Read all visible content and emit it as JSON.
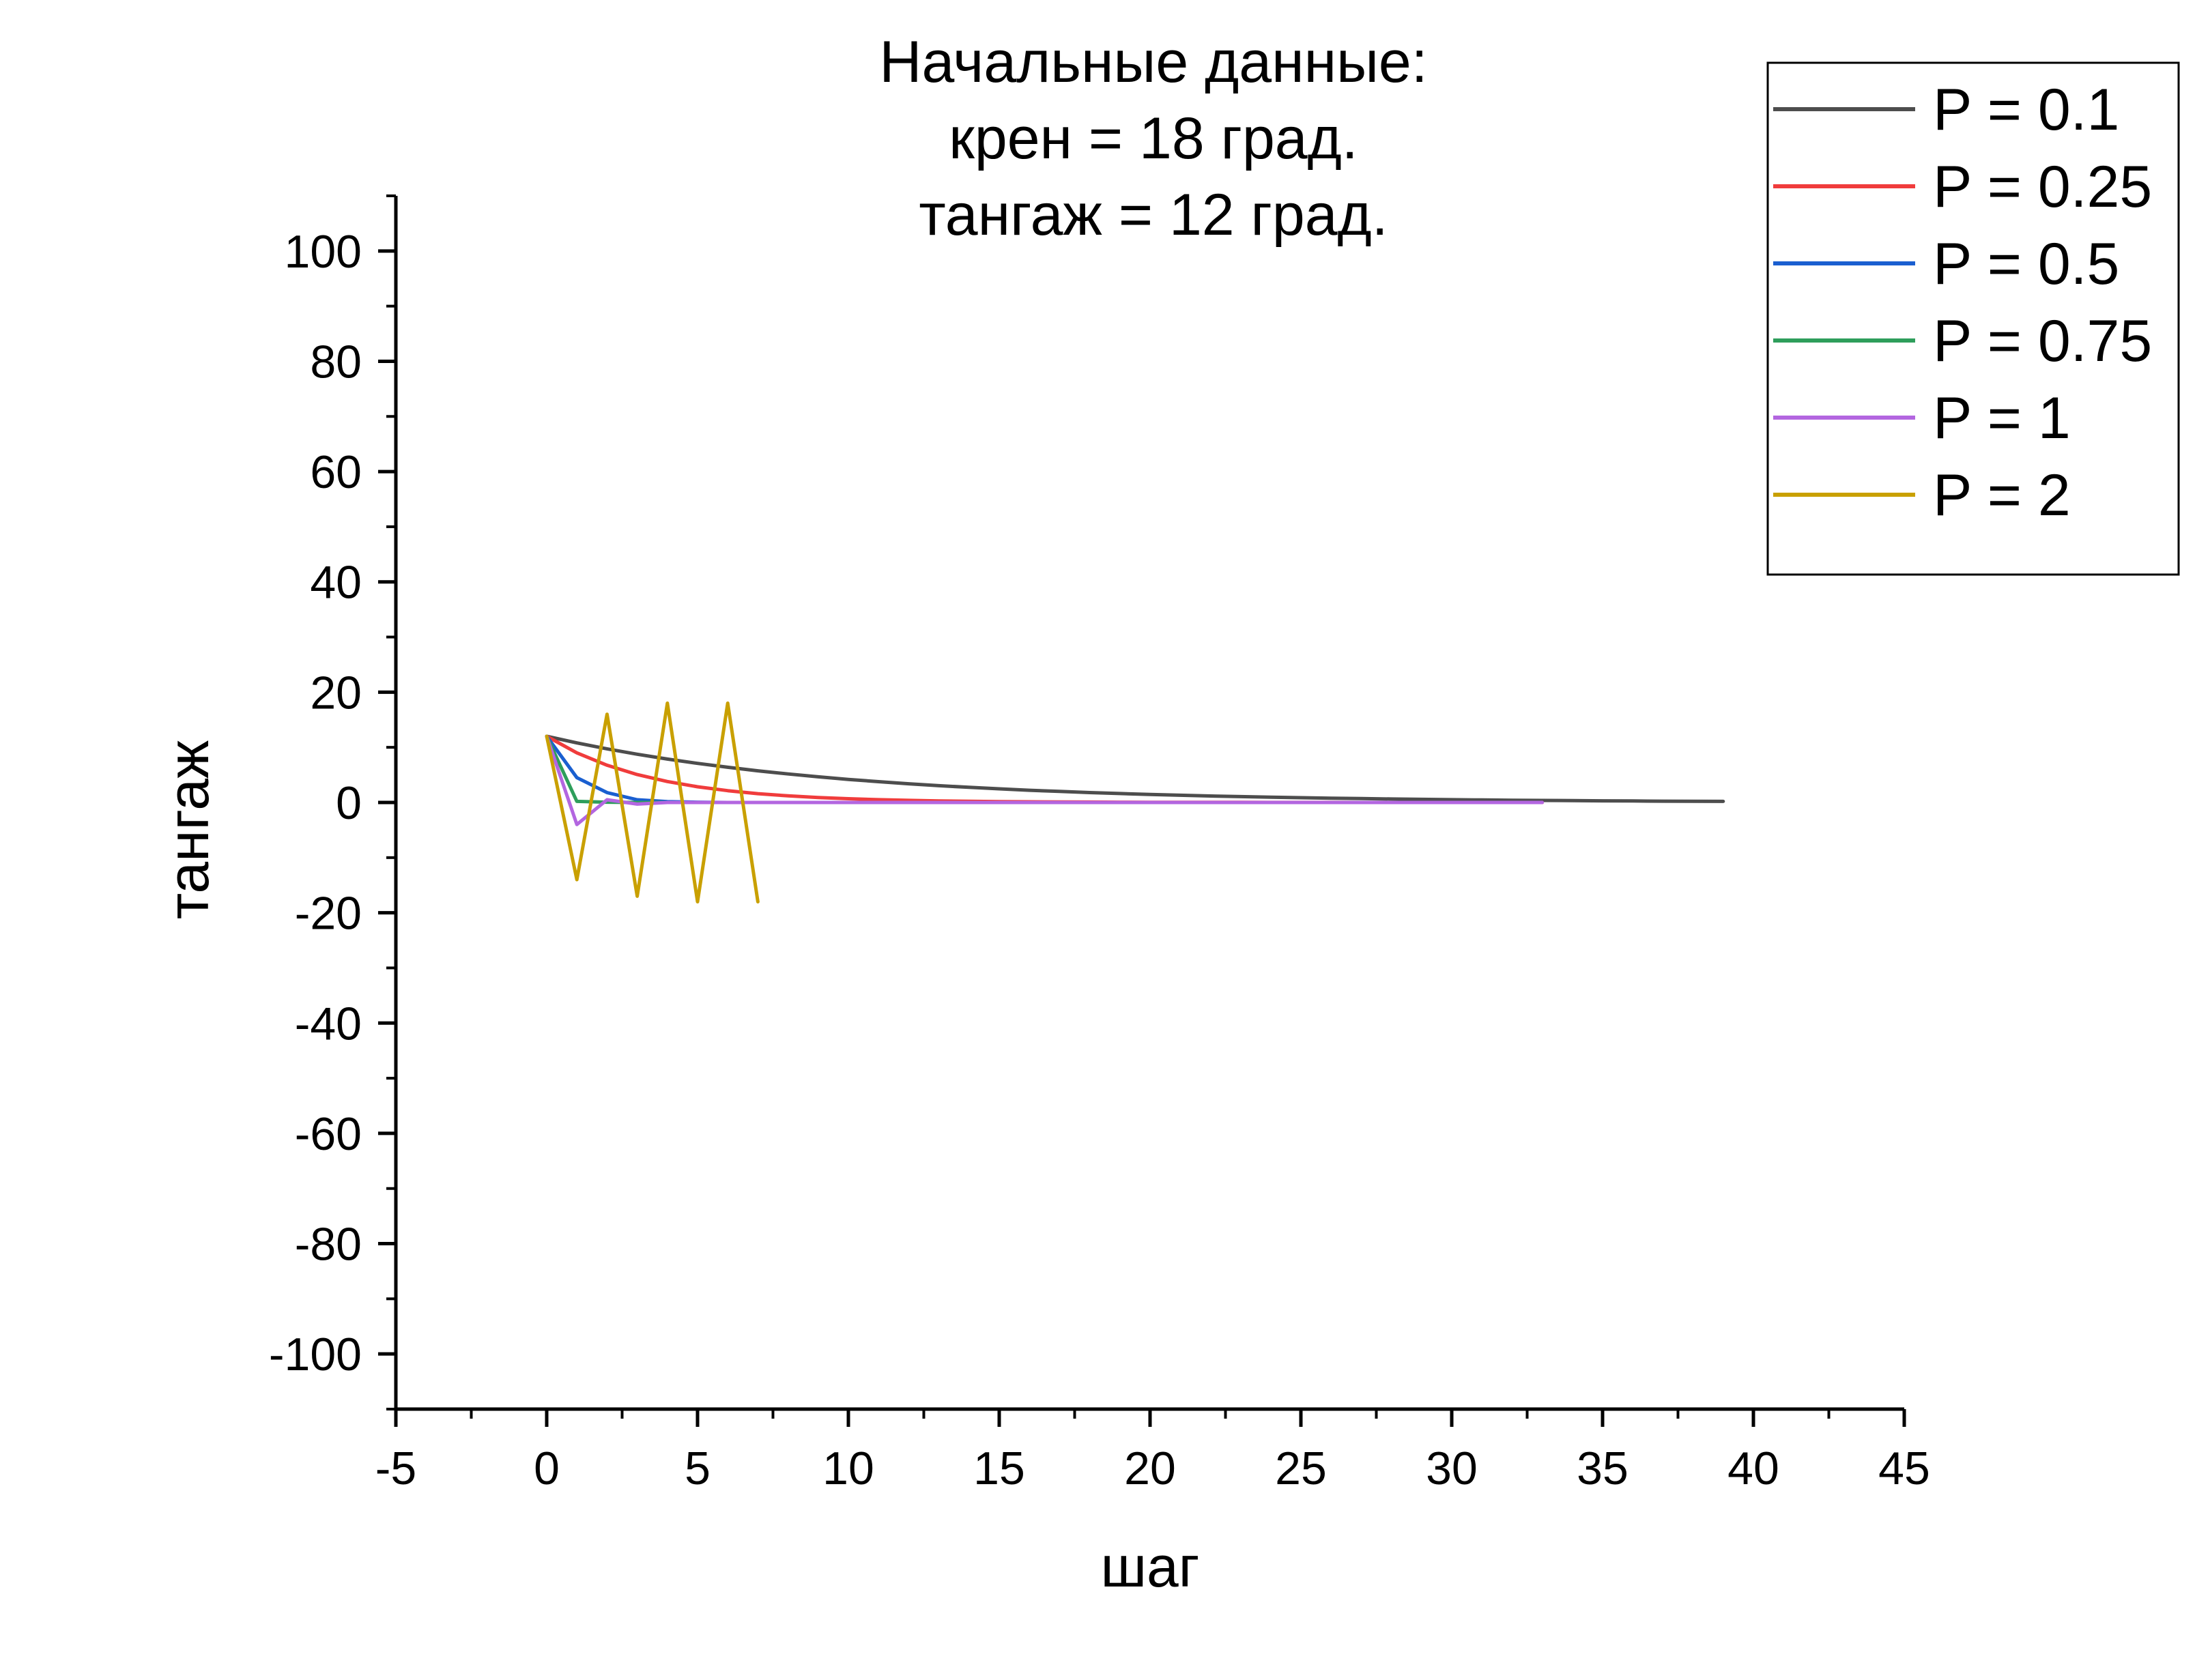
{
  "chart_data": {
    "type": "line",
    "title_lines": [
      "Начальные данные:",
      "крен = 18 град.",
      "тангаж = 12 град."
    ],
    "xlabel": "шаг",
    "ylabel": "тангаж",
    "xlim": [
      -5,
      45
    ],
    "ylim": [
      -110,
      110
    ],
    "x_ticks": [
      "-5",
      "0",
      "5",
      "10",
      "15",
      "20",
      "25",
      "30",
      "35",
      "40",
      "45"
    ],
    "y_ticks": [
      "100",
      "80",
      "60",
      "40",
      "20",
      "0",
      "-20",
      "-40",
      "-60",
      "-80",
      "-100"
    ],
    "grid": false,
    "legend_position": "top-right",
    "series": [
      {
        "name": "P = 0.1",
        "color": "#4d4d4d",
        "x": [
          0,
          1,
          2,
          3,
          4,
          5,
          6,
          7,
          8,
          9,
          10,
          11,
          12,
          13,
          14,
          15,
          16,
          17,
          18,
          19,
          20,
          21,
          22,
          23,
          24,
          25,
          26,
          27,
          28,
          29,
          30,
          31,
          32,
          33,
          34,
          35,
          36,
          37,
          38,
          39
        ],
        "y": [
          12,
          10.8,
          9.72,
          8.75,
          7.87,
          7.09,
          6.38,
          5.74,
          5.17,
          4.65,
          4.18,
          3.77,
          3.39,
          3.05,
          2.75,
          2.47,
          2.22,
          2.0,
          1.8,
          1.62,
          1.46,
          1.31,
          1.18,
          1.06,
          0.96,
          0.86,
          0.78,
          0.7,
          0.63,
          0.57,
          0.51,
          0.46,
          0.41,
          0.37,
          0.33,
          0.3,
          0.27,
          0.24,
          0.22,
          0.2
        ]
      },
      {
        "name": "P = 0.25",
        "color": "#f03c3c",
        "x": [
          0,
          1,
          2,
          3,
          4,
          5,
          6,
          7,
          8,
          9,
          10,
          11,
          12,
          13,
          14,
          15,
          16,
          17,
          18,
          19,
          20,
          21,
          22,
          23,
          24,
          25,
          26,
          27,
          28,
          29,
          30,
          31,
          32,
          33
        ],
        "y": [
          12,
          9.0,
          6.75,
          5.06,
          3.8,
          2.85,
          2.14,
          1.6,
          1.2,
          0.9,
          0.68,
          0.51,
          0.38,
          0.29,
          0.21,
          0.16,
          0.12,
          0.09,
          0.07,
          0.05,
          0.04,
          0.03,
          0.02,
          0.02,
          0.01,
          0.01,
          0.01,
          0,
          0,
          0,
          0,
          0,
          0,
          0
        ]
      },
      {
        "name": "P = 0.5",
        "color": "#1a5fd0",
        "x": [
          0,
          1,
          2,
          3,
          4,
          5,
          6,
          7,
          8,
          9,
          10
        ],
        "y": [
          12,
          4.5,
          1.8,
          0.5,
          0.15,
          0.05,
          0,
          0,
          0,
          0,
          0
        ]
      },
      {
        "name": "P = 0.75",
        "color": "#2e9e5b",
        "x": [
          0,
          1,
          2,
          3,
          4,
          5,
          6,
          7,
          8,
          9,
          10
        ],
        "y": [
          12,
          0.2,
          0.05,
          0,
          0,
          0,
          0,
          0,
          0,
          0,
          0
        ]
      },
      {
        "name": "P = 1",
        "color": "#b366e0",
        "x": [
          0,
          1,
          2,
          3,
          4,
          5,
          6,
          7,
          8,
          9,
          10,
          11,
          12,
          13,
          14,
          15,
          16,
          17,
          18,
          19,
          20,
          21,
          22,
          23,
          24,
          25,
          26,
          27,
          28,
          29,
          30,
          31,
          32,
          33
        ],
        "y": [
          12,
          -4,
          0.5,
          -0.3,
          0,
          0,
          0,
          0,
          0,
          0,
          0,
          0,
          0,
          0,
          0,
          0,
          0,
          0,
          0,
          0,
          0,
          0,
          0,
          0,
          0,
          0,
          0,
          0,
          0,
          0,
          0,
          0,
          0,
          0
        ]
      },
      {
        "name": "P = 2",
        "color": "#c9a000",
        "x": [
          0,
          1,
          2,
          3,
          4,
          5,
          6,
          7
        ],
        "y": [
          12,
          -14,
          16,
          -17,
          18,
          -18,
          18,
          -18
        ]
      }
    ]
  }
}
